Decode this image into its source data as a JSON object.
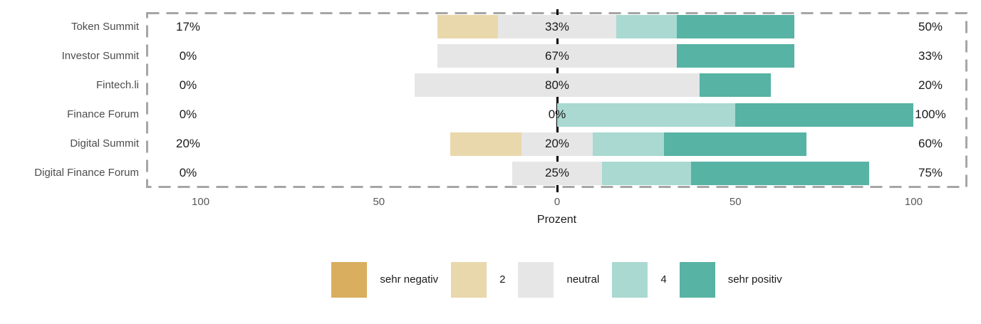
{
  "chart_data": {
    "type": "bar",
    "subtype": "diverging_stacked_likert",
    "orientation": "horizontal",
    "title": "",
    "xlabel": "Prozent",
    "xlim": [
      -115.3,
      115.1
    ],
    "x_ticks": [
      {
        "value": -100,
        "label": "100"
      },
      {
        "value": -50,
        "label": "50"
      },
      {
        "value": 0,
        "label": "0"
      },
      {
        "value": 50,
        "label": "50"
      },
      {
        "value": 100,
        "label": "100"
      }
    ],
    "grid": false,
    "neutral_split_on_zero": true,
    "zero_line_color": "#000000",
    "panel_border_color": "#a6a6a6",
    "categories": [
      "Token Summit",
      "Investor Summit",
      "Fintech.li",
      "Finance Forum",
      "Digital Summit",
      "Digital Finance Forum"
    ],
    "series": [
      {
        "name": "sehr negativ",
        "color": "#d9ae5f",
        "values": [
          0,
          0,
          0,
          0,
          0,
          0
        ]
      },
      {
        "name": "2",
        "color": "#e9d8ac",
        "values": [
          17,
          0,
          0,
          0,
          20,
          0
        ]
      },
      {
        "name": "neutral",
        "color": "#e6e6e6",
        "values": [
          33,
          67,
          80,
          0,
          20,
          25
        ]
      },
      {
        "name": "4",
        "color": "#a9d9d1",
        "values": [
          17,
          0,
          0,
          50,
          20,
          25
        ]
      },
      {
        "name": "sehr positiv",
        "color": "#57b3a4",
        "values": [
          33,
          33,
          20,
          50,
          40,
          50
        ]
      }
    ],
    "row_labels": {
      "left": [
        "17%",
        "0%",
        "0%",
        "0%",
        "20%",
        "0%"
      ],
      "center": [
        "33%",
        "67%",
        "80%",
        "0%",
        "20%",
        "25%"
      ],
      "right": [
        "50%",
        "33%",
        "20%",
        "100%",
        "60%",
        "75%"
      ]
    },
    "legend": {
      "position": "bottom",
      "entries": [
        {
          "label": "sehr negativ",
          "color": "#d9ae5f"
        },
        {
          "label": "2",
          "color": "#e9d8ac"
        },
        {
          "label": "neutral",
          "color": "#e6e6e6"
        },
        {
          "label": "4",
          "color": "#a9d9d1"
        },
        {
          "label": "sehr positiv",
          "color": "#57b3a4"
        }
      ]
    }
  }
}
